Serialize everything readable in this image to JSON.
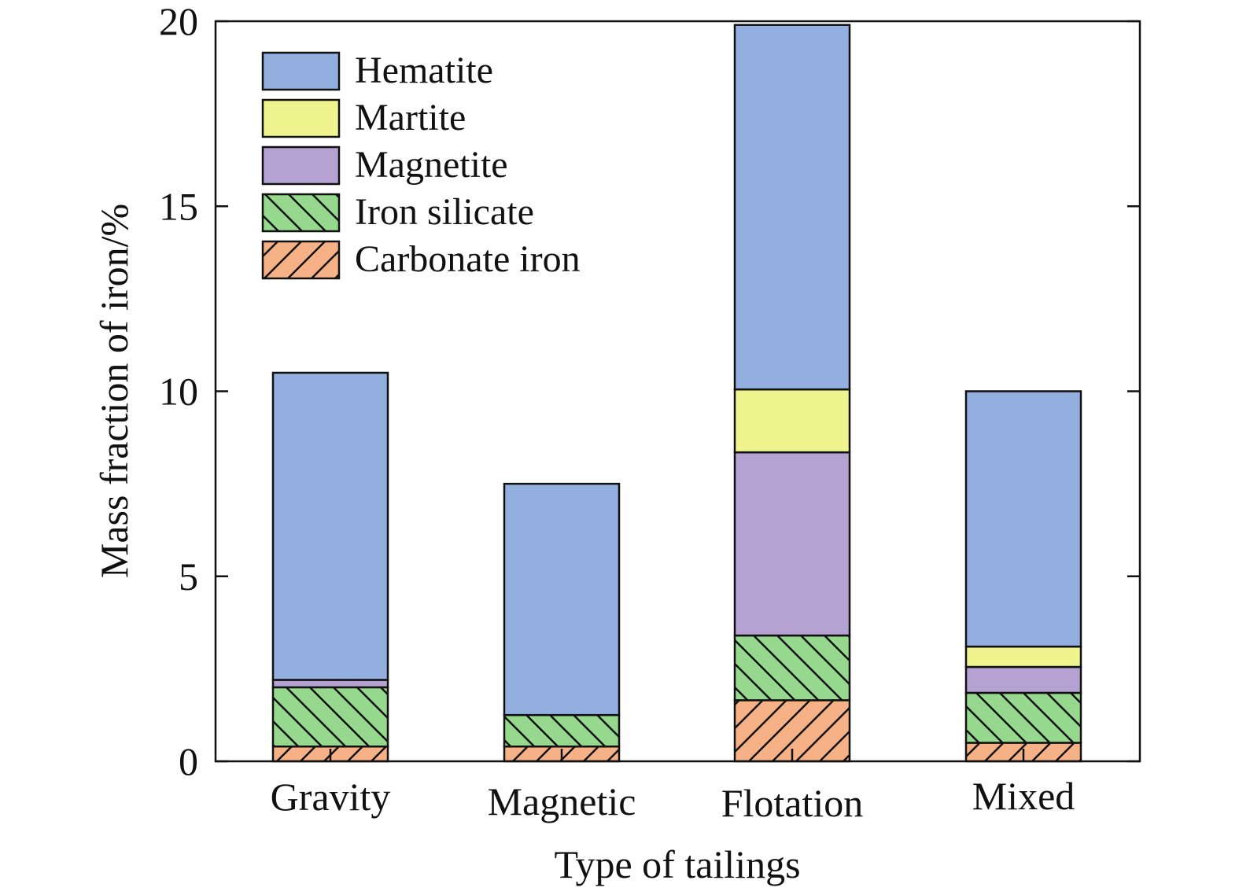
{
  "chart_data": {
    "type": "bar",
    "stacked": true,
    "title": "",
    "xlabel": "Type of tailings",
    "ylabel": "Mass fraction of iron/%",
    "ylim": [
      0,
      20
    ],
    "yticks": [
      0,
      5,
      10,
      15,
      20
    ],
    "categories": [
      "Gravity",
      "Magnetic",
      "Flotation",
      "Mixed"
    ],
    "legend_position": "top-left",
    "grid": false,
    "series": [
      {
        "name": "Carbonate iron",
        "color": "#F6B186",
        "pattern": "hatch-forward",
        "values": [
          0.4,
          0.4,
          1.65,
          0.5
        ]
      },
      {
        "name": "Iron silicate",
        "color": "#95D88E",
        "pattern": "hatch-back",
        "values": [
          1.6,
          0.85,
          1.75,
          1.35
        ]
      },
      {
        "name": "Magnetite",
        "color": "#B5A1D2",
        "pattern": "none",
        "values": [
          0.2,
          0.0,
          4.95,
          0.7
        ]
      },
      {
        "name": "Martite",
        "color": "#EFF48F",
        "pattern": "none",
        "values": [
          0.0,
          0.0,
          1.7,
          0.55
        ]
      },
      {
        "name": "Hematite",
        "color": "#92AFE0",
        "pattern": "none",
        "values": [
          8.3,
          6.25,
          9.85,
          6.9
        ]
      }
    ],
    "legend_order": [
      "Hematite",
      "Martite",
      "Magnetite",
      "Iron silicate",
      "Carbonate iron"
    ]
  }
}
